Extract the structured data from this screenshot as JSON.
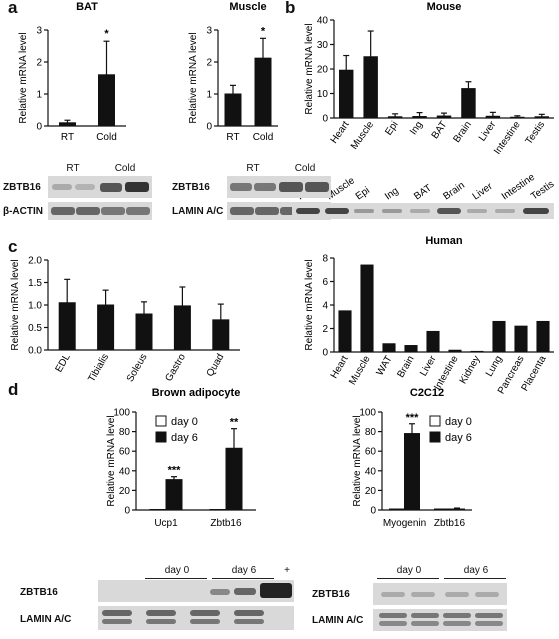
{
  "panels": {
    "a": "a",
    "b": "b",
    "c": "c",
    "d": "d"
  },
  "charts": [
    {
      "id": "bat",
      "title": "BAT",
      "ylabel": "Relative mRNA level",
      "ylim": [
        0,
        3
      ],
      "ticks": [
        "0",
        "1",
        "2",
        "3"
      ],
      "categories": [
        "RT",
        "Cold"
      ],
      "values": [
        0.1,
        1.6
      ],
      "errors": [
        0.08,
        1.05
      ],
      "stars": [
        "",
        "*"
      ],
      "fill": "#111"
    },
    {
      "id": "muscle",
      "title": "Muscle",
      "ylabel": "Relative mRNA level",
      "ylim": [
        0,
        3
      ],
      "ticks": [
        "0",
        "1",
        "2",
        "3"
      ],
      "categories": [
        "RT",
        "Cold"
      ],
      "values": [
        1.0,
        2.12
      ],
      "errors": [
        0.27,
        0.62
      ],
      "stars": [
        "",
        "*"
      ],
      "fill": "#111"
    },
    {
      "id": "mouse",
      "title": "Mouse",
      "ylabel": "Relative mRNA level",
      "ylim": [
        0,
        40
      ],
      "ticks": [
        "0",
        "10",
        "20",
        "30",
        "40"
      ],
      "categories": [
        "Heart",
        "Muscle",
        "Epi",
        "Ing",
        "BAT",
        "Brain",
        "Liver",
        "Intestine",
        "Testis"
      ],
      "values": [
        19.5,
        25,
        0.5,
        0.6,
        0.8,
        12,
        0.7,
        0.3,
        0.5
      ],
      "errors": [
        6,
        10.5,
        1.2,
        1.6,
        1.2,
        2.8,
        1.6,
        0.6,
        1.0
      ],
      "fill": "#111"
    },
    {
      "id": "tissues",
      "title": "",
      "ylabel": "Relative mRNA level",
      "ylim": [
        0,
        2.0
      ],
      "ticks": [
        "0.0",
        "0.5",
        "1.0",
        "1.5",
        "2.0"
      ],
      "categories": [
        "EDL",
        "Tibialis",
        "Soleus",
        "Gastro",
        "Quad"
      ],
      "values": [
        1.05,
        1.0,
        0.8,
        0.98,
        0.67
      ],
      "errors": [
        0.52,
        0.33,
        0.27,
        0.42,
        0.35
      ],
      "fill": "#111"
    },
    {
      "id": "human",
      "title": "Human",
      "ylabel": "Relative mRNA level",
      "ylim": [
        0,
        8
      ],
      "ticks": [
        "0",
        "2",
        "4",
        "6",
        "8"
      ],
      "categories": [
        "Heart",
        "Muscle",
        "WAT",
        "Brain",
        "Liver",
        "Intestine",
        "Kidney",
        "Lung",
        "Pancreas",
        "Placenta"
      ],
      "values": [
        3.5,
        7.4,
        0.7,
        0.55,
        1.75,
        0.15,
        0.05,
        2.6,
        2.2,
        2.6
      ],
      "errors": [
        0,
        0,
        0,
        0,
        0,
        0,
        0,
        0,
        0,
        0
      ],
      "fill": "#111"
    },
    {
      "id": "brown",
      "title": "Brown adipocyte",
      "ylabel": "Relative mRNA level",
      "ylim": [
        0,
        100
      ],
      "ticks": [
        "0",
        "20",
        "40",
        "60",
        "80",
        "100"
      ],
      "categories": [
        "Ucp1",
        "Zbtb16"
      ],
      "series": [
        {
          "name": "day 0",
          "values": [
            0.5,
            0.5
          ],
          "errors": [
            0,
            0
          ],
          "fill": "#fff"
        },
        {
          "name": "day 6",
          "values": [
            31,
            63
          ],
          "errors": [
            3,
            20
          ],
          "fill": "#111"
        }
      ],
      "stars": [
        "***",
        "**"
      ]
    },
    {
      "id": "c2c12",
      "title": "C2C12",
      "ylabel": "Relative mRNA level",
      "ylim": [
        0,
        100
      ],
      "ticks": [
        "0",
        "20",
        "40",
        "60",
        "80",
        "100"
      ],
      "categories": [
        "Myogenin",
        "Zbtb16"
      ],
      "series": [
        {
          "name": "day 0",
          "values": [
            1,
            1
          ],
          "errors": [
            0,
            0
          ],
          "fill": "#fff"
        },
        {
          "name": "day 6",
          "values": [
            78,
            1
          ],
          "errors": [
            10,
            1
          ],
          "fill": "#111"
        }
      ],
      "stars": [
        "***",
        ""
      ]
    }
  ],
  "blots": {
    "a_bat": {
      "groups": [
        "RT",
        "Cold"
      ],
      "rows": [
        "ZBTB16",
        "β-ACTIN"
      ]
    },
    "a_muscle": {
      "groups": [
        "RT",
        "Cold"
      ],
      "rows": [
        "ZBTB16",
        "LAMIN A/C"
      ]
    },
    "b_mouse": {
      "lanes": [
        "Heart",
        "Muscle",
        "Epi",
        "Ing",
        "BAT",
        "Brain",
        "Liver",
        "Intestine",
        "Testis"
      ]
    },
    "d_brown": {
      "groups": [
        "day 0",
        "day 6",
        "+"
      ],
      "rows": [
        "ZBTB16",
        "LAMIN A/C"
      ]
    },
    "d_c2c12": {
      "groups": [
        "day 0",
        "day 6"
      ],
      "rows": [
        "ZBTB16",
        "LAMIN A/C"
      ]
    }
  }
}
